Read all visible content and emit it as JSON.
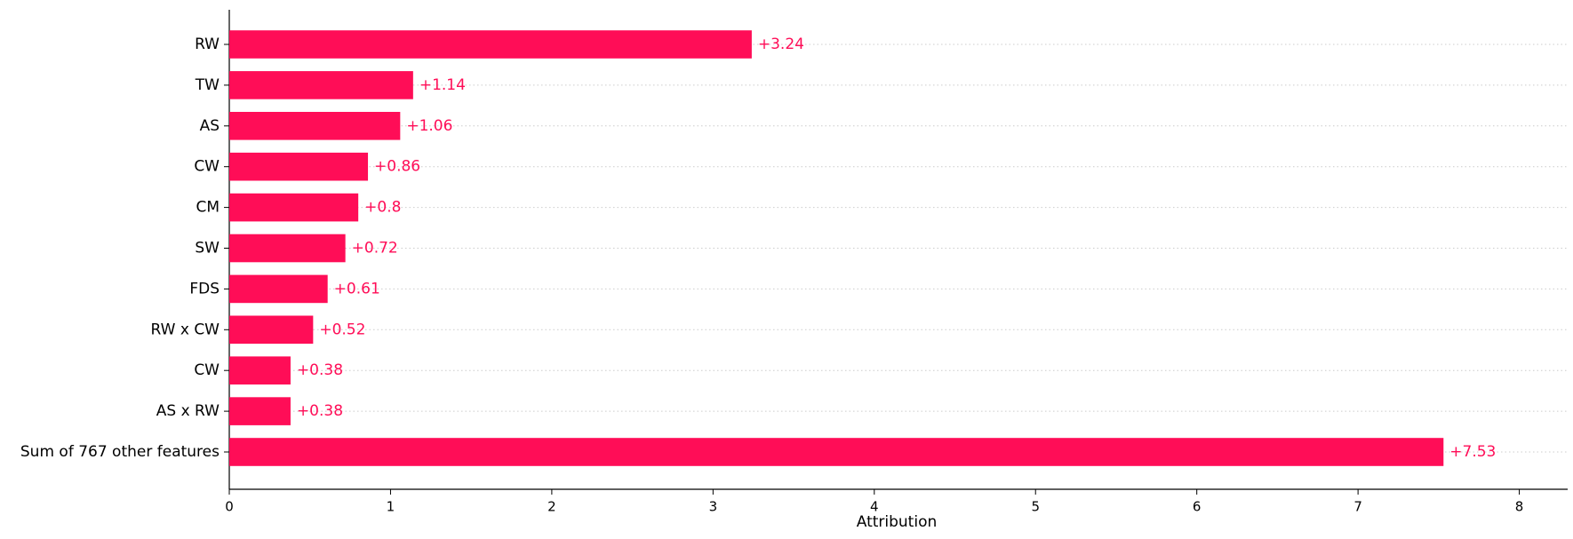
{
  "chart_data": {
    "type": "bar",
    "orientation": "horizontal",
    "x_label": "Attribution",
    "categories": [
      "RW",
      "TW",
      "AS",
      "CW",
      "CM",
      "SW",
      "FDS",
      "RW x CW",
      "CW",
      "AS x RW",
      "Sum of 767 other features"
    ],
    "values": [
      3.24,
      1.14,
      1.06,
      0.86,
      0.8,
      0.72,
      0.61,
      0.52,
      0.38,
      0.38,
      7.53
    ],
    "value_labels": [
      "+3.24",
      "+1.14",
      "+1.06",
      "+0.86",
      "+0.8",
      "+0.72",
      "+0.61",
      "+0.52",
      "+0.38",
      "+0.38",
      "+7.53"
    ],
    "color": "#ff0d57",
    "xlim": [
      0,
      8.3
    ],
    "xticks": [
      0,
      1,
      2,
      3,
      4,
      5,
      6,
      7,
      8
    ]
  }
}
